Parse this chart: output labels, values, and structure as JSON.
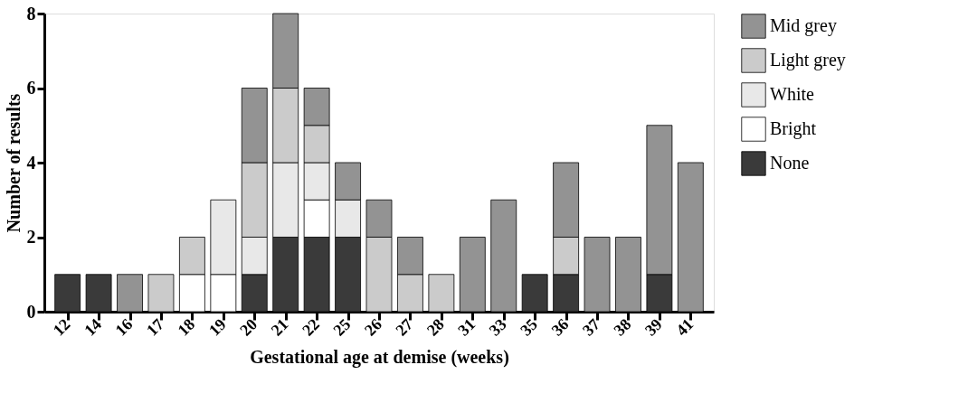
{
  "chart_data": {
    "type": "bar",
    "stacked": true,
    "xlabel": "Gestational age at demise (weeks)",
    "ylabel": "Number of results",
    "categories": [
      "12",
      "14",
      "16",
      "17",
      "18",
      "19",
      "20",
      "21",
      "22",
      "25",
      "26",
      "27",
      "28",
      "31",
      "33",
      "35",
      "36",
      "37",
      "38",
      "39",
      "41"
    ],
    "series": [
      {
        "name": "None",
        "color": "#3a3a3a",
        "values": [
          1,
          1,
          null,
          null,
          null,
          null,
          1,
          2,
          2,
          2,
          null,
          null,
          null,
          null,
          null,
          1,
          1,
          null,
          null,
          1,
          null
        ]
      },
      {
        "name": "Bright",
        "color": "#ffffff",
        "values": [
          null,
          null,
          null,
          null,
          1,
          1,
          null,
          null,
          1,
          null,
          null,
          null,
          null,
          null,
          null,
          null,
          null,
          null,
          null,
          null,
          null
        ]
      },
      {
        "name": "White",
        "color": "#e8e8e8",
        "values": [
          null,
          null,
          null,
          null,
          null,
          2,
          1,
          2,
          1,
          1,
          null,
          null,
          null,
          null,
          null,
          null,
          null,
          null,
          null,
          null,
          null
        ]
      },
      {
        "name": "Light grey",
        "color": "#cbcbcb",
        "values": [
          null,
          null,
          null,
          1,
          1,
          null,
          2,
          2,
          1,
          null,
          2,
          1,
          1,
          null,
          null,
          null,
          1,
          null,
          null,
          null,
          null
        ]
      },
      {
        "name": "Mid grey",
        "color": "#939393",
        "values": [
          null,
          null,
          1,
          null,
          null,
          null,
          2,
          2,
          1,
          1,
          1,
          1,
          null,
          2,
          3,
          null,
          2,
          2,
          2,
          4,
          4
        ]
      }
    ],
    "ylim": [
      0,
      8
    ],
    "yticks": [
      0,
      2,
      4,
      6,
      8
    ],
    "grid": false,
    "legend": "right"
  }
}
